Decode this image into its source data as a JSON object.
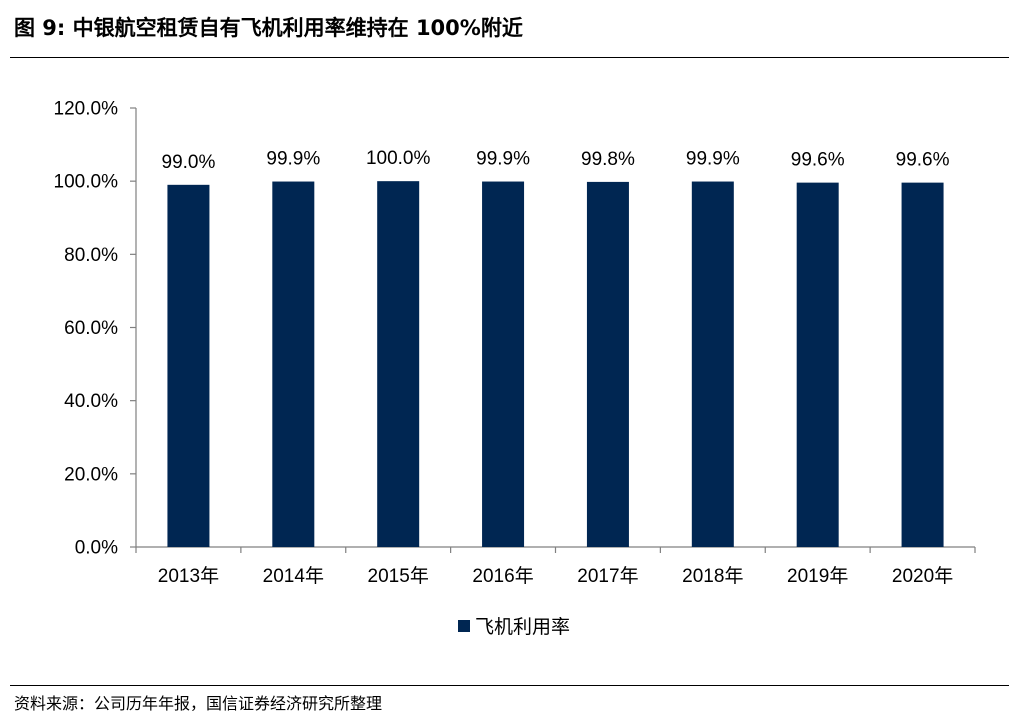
{
  "title": "图 9:  中银航空租赁自有飞机利用率维持在 100%附近",
  "source": "资料来源：公司历年年报，国信证券经济研究所整理",
  "colors": {
    "bar": "#002652",
    "axis": "#808080"
  },
  "chart_data": {
    "type": "bar",
    "categories": [
      "2013年",
      "2014年",
      "2015年",
      "2016年",
      "2017年",
      "2018年",
      "2019年",
      "2020年"
    ],
    "series": [
      {
        "name": "飞机利用率",
        "values": [
          99.0,
          99.9,
          100.0,
          99.9,
          99.8,
          99.9,
          99.6,
          99.6
        ],
        "labels": [
          "99.0%",
          "99.9%",
          "100.0%",
          "99.9%",
          "99.8%",
          "99.9%",
          "99.6%",
          "99.6%"
        ]
      }
    ],
    "ylim": [
      0,
      120
    ],
    "yticks": [
      0,
      20,
      40,
      60,
      80,
      100,
      120
    ],
    "ytick_labels": [
      "0.0%",
      "20.0%",
      "40.0%",
      "60.0%",
      "80.0%",
      "100.0%",
      "120.0%"
    ],
    "grid": false,
    "legend": "bottom-center"
  }
}
